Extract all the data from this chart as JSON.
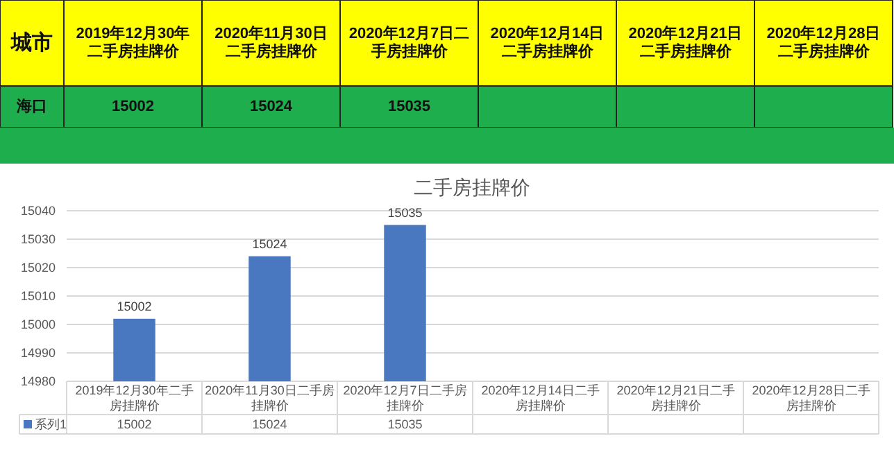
{
  "chart_data": [
    {
      "type": "other",
      "ylabel": "城市",
      "categories": [
        "2019年12月30年二手房挂牌价",
        "2020年11月30日二手房挂牌价",
        "2020年12月7日二手房挂牌价",
        "2020年12月14日二手房挂牌价",
        "2020年12月21日二手房挂牌价",
        "2020年12月28日二手房挂牌价"
      ],
      "y_categories": [
        "海口"
      ],
      "value_labels": [
        "15002",
        "15024",
        "15035",
        null,
        null,
        null
      ],
      "color": "#1fae4e"
    },
    {
      "type": "bar",
      "title": "二手房挂牌价",
      "categories": [
        "2019年12月30年二手房挂牌价",
        "2020年11月30日二手房挂牌价",
        "2020年12月7日二手房挂牌价",
        "2020年12月14日二手房挂牌价",
        "2020年12月21日二手房挂牌价",
        "2020年12月28日二手房挂牌价"
      ],
      "series": [
        {
          "name": "系列1",
          "color": "#4a78c0",
          "values": [
            15002,
            15024,
            15035,
            null,
            null,
            null
          ],
          "value_labels": [
            "15002",
            "15024",
            "15035",
            null,
            null,
            null
          ]
        }
      ],
      "annotations": [
        "15002",
        "15024",
        "15035"
      ],
      "ylim": [
        14980,
        15040
      ],
      "yticks": [
        14980,
        14990,
        15000,
        15010,
        15020,
        15030,
        15040
      ],
      "grid": "y",
      "legend": "bottom"
    }
  ]
}
